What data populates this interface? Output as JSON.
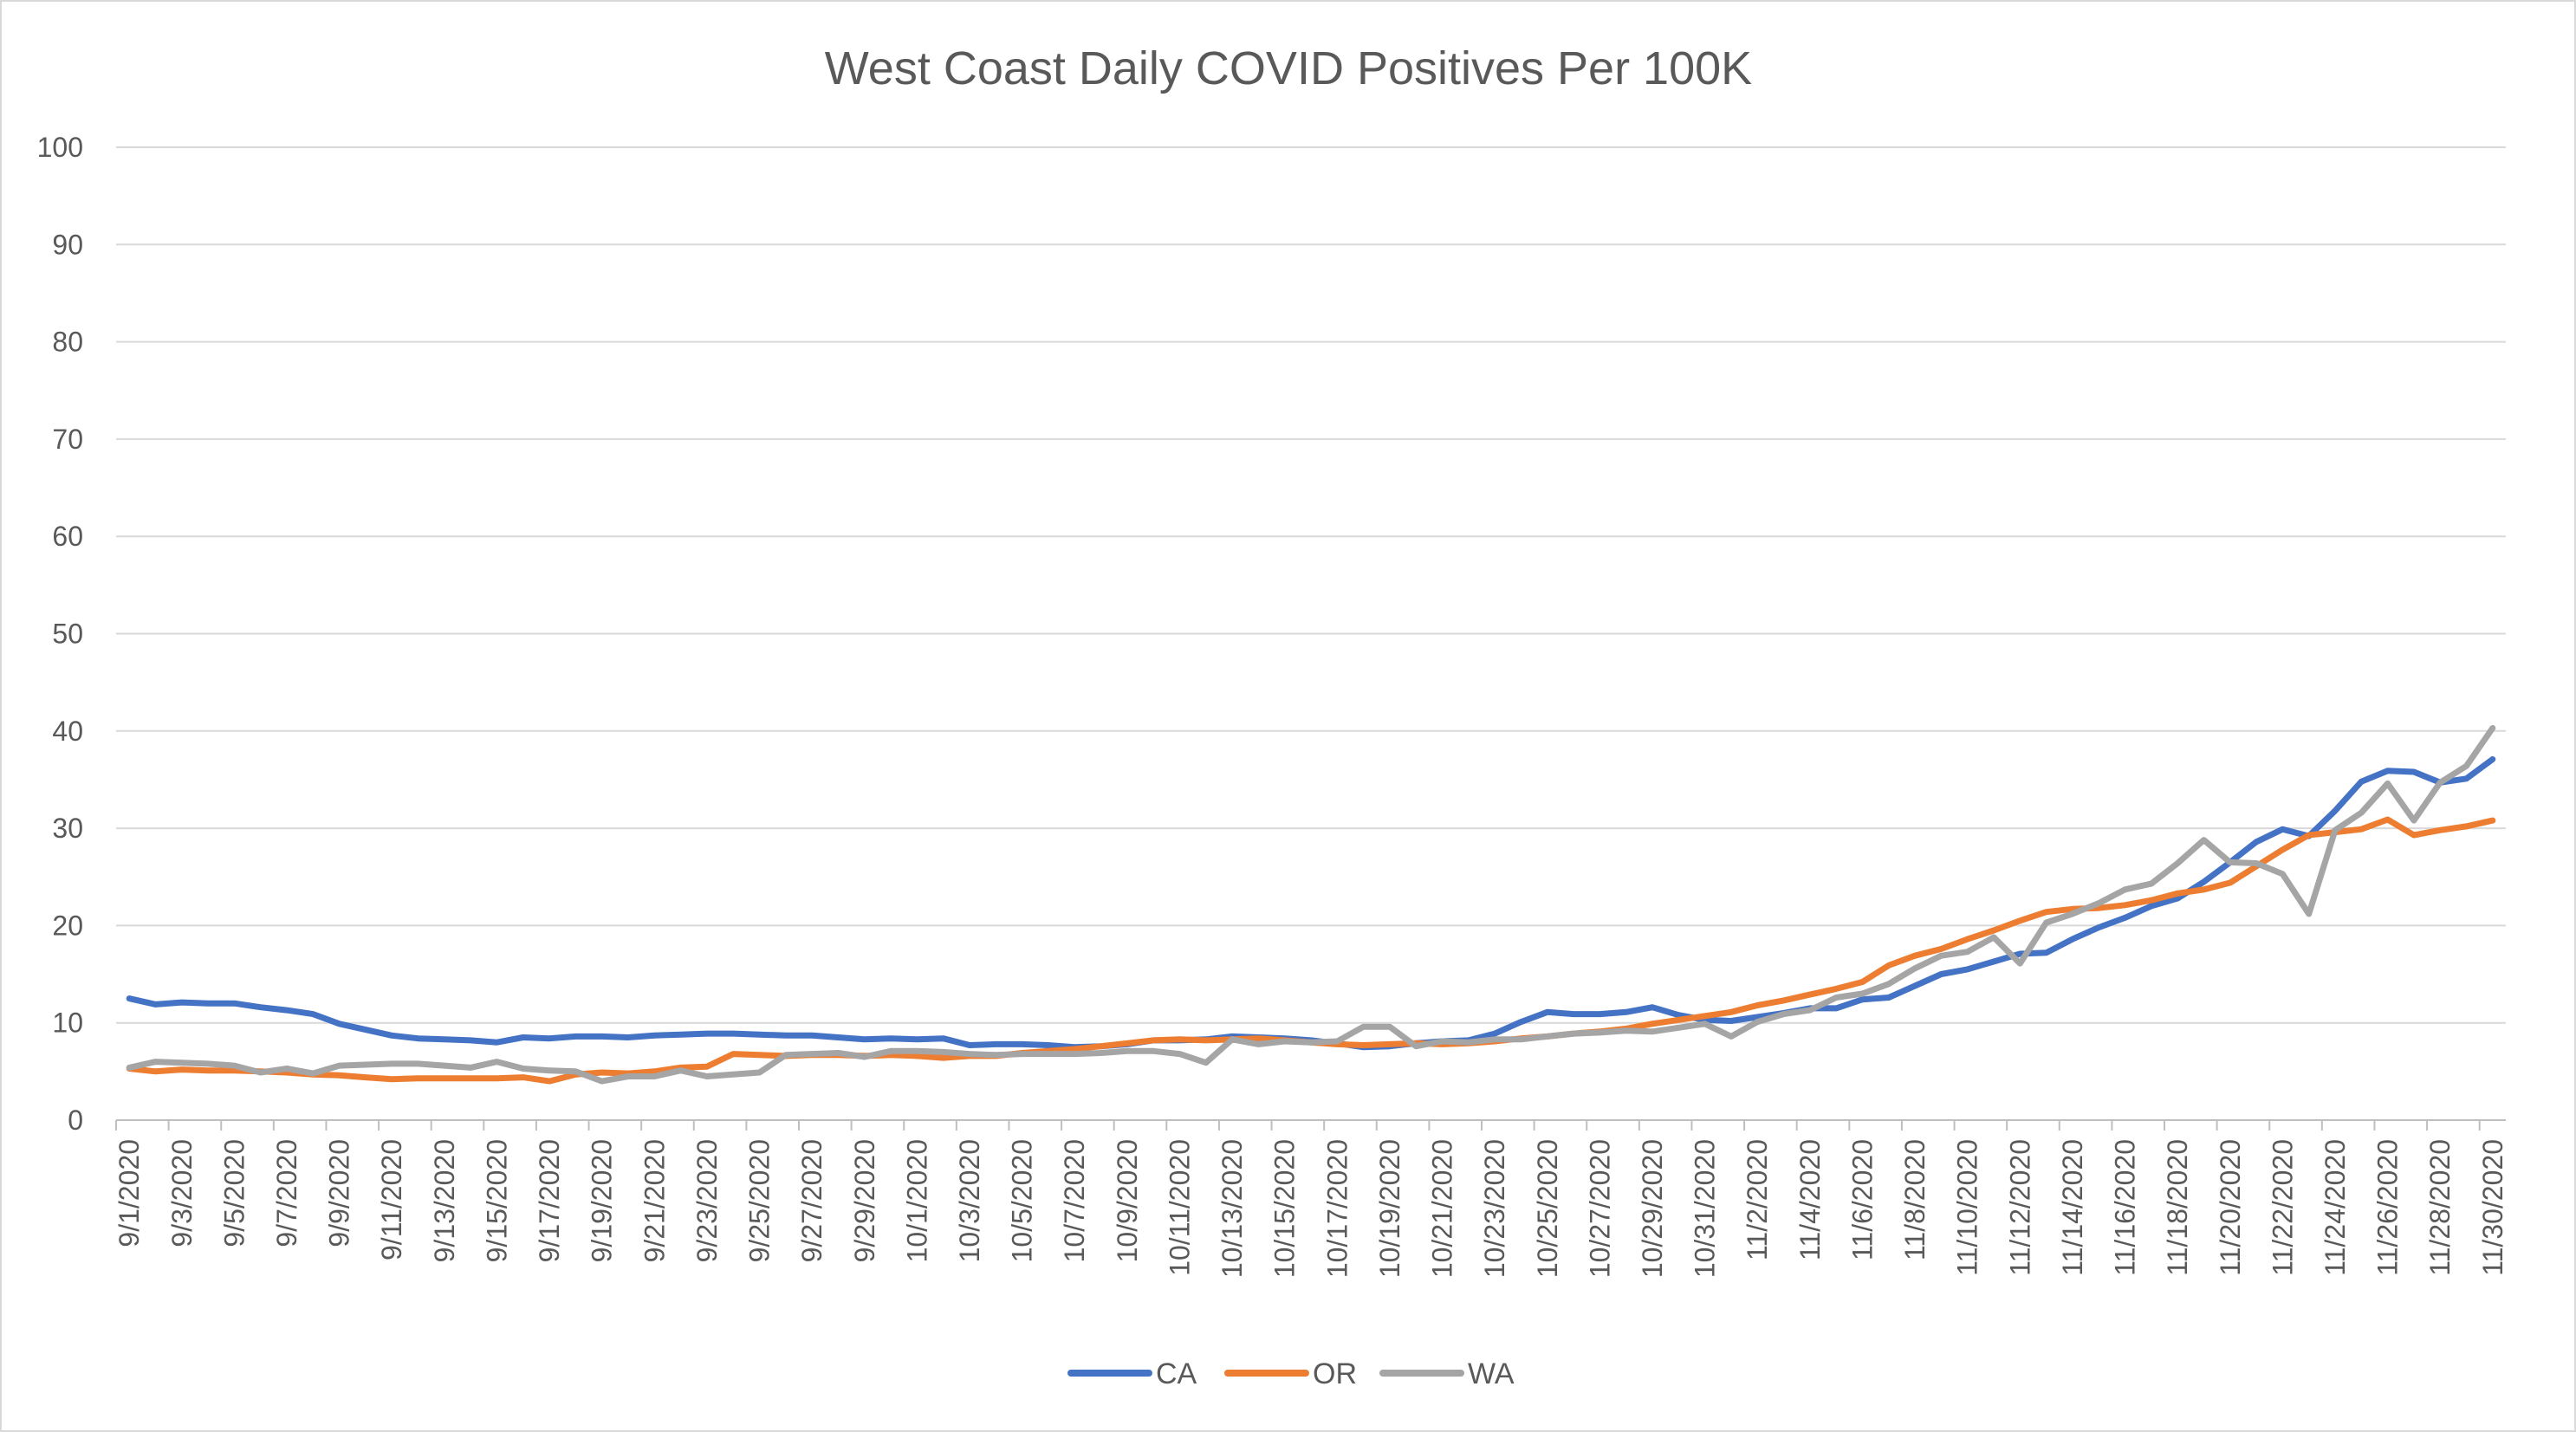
{
  "chart_data": {
    "type": "line",
    "title": "West Coast Daily COVID Positives Per 100K",
    "xlabel": "",
    "ylabel": "",
    "ylim": [
      0,
      100
    ],
    "yticks": [
      0,
      10,
      20,
      30,
      40,
      50,
      60,
      70,
      80,
      90,
      100
    ],
    "grid": true,
    "legend_position": "bottom",
    "x": [
      "9/1/2020",
      "9/2/2020",
      "9/3/2020",
      "9/4/2020",
      "9/5/2020",
      "9/6/2020",
      "9/7/2020",
      "9/8/2020",
      "9/9/2020",
      "9/10/2020",
      "9/11/2020",
      "9/12/2020",
      "9/13/2020",
      "9/14/2020",
      "9/15/2020",
      "9/16/2020",
      "9/17/2020",
      "9/18/2020",
      "9/19/2020",
      "9/20/2020",
      "9/21/2020",
      "9/22/2020",
      "9/23/2020",
      "9/24/2020",
      "9/25/2020",
      "9/26/2020",
      "9/27/2020",
      "9/28/2020",
      "9/29/2020",
      "9/30/2020",
      "10/1/2020",
      "10/2/2020",
      "10/3/2020",
      "10/4/2020",
      "10/5/2020",
      "10/6/2020",
      "10/7/2020",
      "10/8/2020",
      "10/9/2020",
      "10/10/2020",
      "10/11/2020",
      "10/12/2020",
      "10/13/2020",
      "10/14/2020",
      "10/15/2020",
      "10/16/2020",
      "10/17/2020",
      "10/18/2020",
      "10/19/2020",
      "10/20/2020",
      "10/21/2020",
      "10/22/2020",
      "10/23/2020",
      "10/24/2020",
      "10/25/2020",
      "10/26/2020",
      "10/27/2020",
      "10/28/2020",
      "10/29/2020",
      "10/30/2020",
      "10/31/2020",
      "11/1/2020",
      "11/2/2020",
      "11/3/2020",
      "11/4/2020",
      "11/5/2020",
      "11/6/2020",
      "11/7/2020",
      "11/8/2020",
      "11/9/2020",
      "11/10/2020",
      "11/11/2020",
      "11/12/2020",
      "11/13/2020",
      "11/14/2020",
      "11/15/2020",
      "11/16/2020",
      "11/17/2020",
      "11/18/2020",
      "11/19/2020",
      "11/20/2020",
      "11/21/2020",
      "11/22/2020",
      "11/23/2020",
      "11/24/2020",
      "11/25/2020",
      "11/26/2020",
      "11/27/2020",
      "11/28/2020",
      "11/29/2020",
      "11/30/2020"
    ],
    "x_tick_labels": [
      "9/1/2020",
      "9/3/2020",
      "9/5/2020",
      "9/7/2020",
      "9/9/2020",
      "9/11/2020",
      "9/13/2020",
      "9/15/2020",
      "9/17/2020",
      "9/19/2020",
      "9/21/2020",
      "9/23/2020",
      "9/25/2020",
      "9/27/2020",
      "9/29/2020",
      "10/1/2020",
      "10/3/2020",
      "10/5/2020",
      "10/7/2020",
      "10/9/2020",
      "10/11/2020",
      "10/13/2020",
      "10/15/2020",
      "10/17/2020",
      "10/19/2020",
      "10/21/2020",
      "10/23/2020",
      "10/25/2020",
      "10/27/2020",
      "10/29/2020",
      "10/31/2020",
      "11/2/2020",
      "11/4/2020",
      "11/6/2020",
      "11/8/2020",
      "11/10/2020",
      "11/12/2020",
      "11/14/2020",
      "11/16/2020",
      "11/18/2020",
      "11/20/2020",
      "11/22/2020",
      "11/24/2020",
      "11/26/2020",
      "11/28/2020",
      "11/30/2020"
    ],
    "series": [
      {
        "name": "CA",
        "color": "#4472C4",
        "values": [
          12.5,
          11.9,
          12.1,
          12.0,
          12.0,
          11.6,
          11.3,
          10.9,
          9.9,
          9.3,
          8.7,
          8.4,
          8.3,
          8.2,
          8.0,
          8.5,
          8.4,
          8.6,
          8.6,
          8.5,
          8.7,
          8.8,
          8.9,
          8.9,
          8.8,
          8.7,
          8.7,
          8.5,
          8.3,
          8.4,
          8.3,
          8.4,
          7.7,
          7.8,
          7.8,
          7.7,
          7.5,
          7.6,
          7.8,
          8.2,
          8.2,
          8.3,
          8.6,
          8.5,
          8.4,
          8.2,
          7.9,
          7.5,
          7.6,
          7.9,
          8.1,
          8.2,
          8.9,
          10.1,
          11.1,
          10.9,
          10.9,
          11.1,
          11.6,
          10.8,
          10.3,
          10.2,
          10.6,
          11.0,
          11.5,
          11.5,
          12.4,
          12.6,
          13.8,
          15.0,
          15.5,
          16.3,
          17.1,
          17.2,
          18.6,
          19.8,
          20.8,
          22.0,
          22.8,
          24.5,
          26.5,
          28.6,
          29.9,
          29.2,
          31.8,
          34.8,
          35.9,
          35.8,
          34.7,
          35.1,
          37.1
        ]
      },
      {
        "name": "OR",
        "color": "#ED7D31",
        "values": [
          5.3,
          5.0,
          5.2,
          5.1,
          5.1,
          5.0,
          4.9,
          4.7,
          4.6,
          4.4,
          4.2,
          4.3,
          4.3,
          4.3,
          4.3,
          4.4,
          4.0,
          4.7,
          4.9,
          4.8,
          5.0,
          5.4,
          5.5,
          6.8,
          6.7,
          6.6,
          6.7,
          6.7,
          6.6,
          6.7,
          6.6,
          6.4,
          6.6,
          6.6,
          6.9,
          7.1,
          7.3,
          7.6,
          7.9,
          8.2,
          8.3,
          8.2,
          8.3,
          8.4,
          8.2,
          8.0,
          7.8,
          7.7,
          7.8,
          7.9,
          7.8,
          7.9,
          8.1,
          8.4,
          8.6,
          8.9,
          9.1,
          9.4,
          9.9,
          10.3,
          10.7,
          11.1,
          11.8,
          12.3,
          12.9,
          13.5,
          14.2,
          15.9,
          16.9,
          17.6,
          18.6,
          19.5,
          20.5,
          21.4,
          21.7,
          21.8,
          22.1,
          22.6,
          23.3,
          23.7,
          24.4,
          26.1,
          27.8,
          29.3,
          29.6,
          29.9,
          30.9,
          29.3,
          29.8,
          30.2,
          30.8
        ]
      },
      {
        "name": "WA",
        "color": "#A5A5A5",
        "values": [
          5.4,
          6.0,
          5.9,
          5.8,
          5.6,
          4.9,
          5.3,
          4.8,
          5.6,
          5.7,
          5.8,
          5.8,
          5.6,
          5.4,
          6.0,
          5.3,
          5.1,
          5.0,
          4.0,
          4.5,
          4.5,
          5.1,
          4.5,
          4.7,
          4.9,
          6.7,
          6.8,
          6.9,
          6.5,
          7.1,
          7.1,
          7.0,
          6.8,
          6.7,
          6.8,
          6.8,
          6.8,
          6.9,
          7.1,
          7.1,
          6.8,
          5.9,
          8.3,
          7.8,
          8.1,
          8.0,
          8.1,
          9.6,
          9.6,
          7.6,
          8.1,
          8.0,
          8.3,
          8.3,
          8.6,
          8.9,
          9.0,
          9.2,
          9.1,
          9.5,
          9.9,
          8.6,
          10.1,
          10.9,
          11.3,
          12.6,
          13.0,
          14.0,
          15.6,
          16.9,
          17.3,
          18.8,
          16.1,
          20.3,
          21.2,
          22.3,
          23.7,
          24.3,
          26.4,
          28.8,
          26.5,
          26.4,
          25.3,
          21.2,
          29.8,
          31.6,
          34.6,
          30.8,
          34.7,
          36.4,
          40.3
        ]
      }
    ]
  }
}
